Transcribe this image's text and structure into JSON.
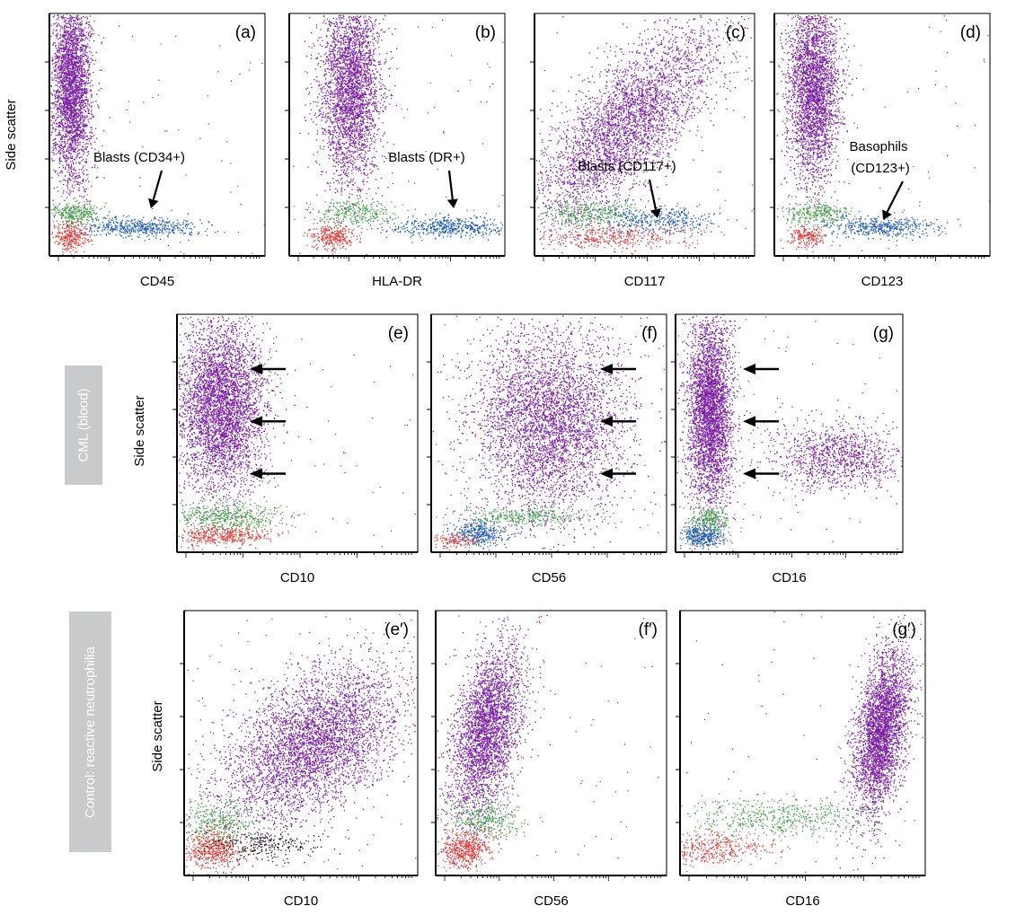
{
  "figure": {
    "ylabel": "Side scatter",
    "row_labels": [
      "CML (blood)",
      "Control: reactive neutrophilia"
    ]
  },
  "colors": {
    "granulocytes": "#7b1fa2",
    "lymphocytes": "#e53935",
    "monocytes": "#43a047",
    "blasts": "#1e5bb8",
    "other": "#111111",
    "arrow": "#000000"
  },
  "chart_data": [
    {
      "type": "scatter",
      "panel": "(a)",
      "xlabel": "CD45",
      "ylabel": "Side scatter",
      "x_scale": "log",
      "annotations": [
        {
          "text": "Blasts (CD34+)",
          "arrow": true
        }
      ],
      "populations": [
        {
          "name": "granulocytes",
          "color": "#7b1fa2",
          "x": 0.1,
          "y": 0.7,
          "count": 3200
        },
        {
          "name": "monocytes",
          "color": "#43a047",
          "x": 0.12,
          "y": 0.18,
          "count": 300
        },
        {
          "name": "lymphocytes",
          "color": "#e53935",
          "x": 0.1,
          "y": 0.08,
          "count": 300
        },
        {
          "name": "blasts",
          "color": "#1e5bb8",
          "x": 0.42,
          "y": 0.12,
          "count": 500
        }
      ]
    },
    {
      "type": "scatter",
      "panel": "(b)",
      "xlabel": "HLA-DR",
      "ylabel": "",
      "x_scale": "log",
      "annotations": [
        {
          "text": "Blasts (DR+)",
          "arrow": true
        }
      ],
      "populations": [
        {
          "name": "granulocytes",
          "color": "#7b1fa2",
          "x": 0.28,
          "y": 0.7,
          "count": 3200
        },
        {
          "name": "monocytes",
          "color": "#43a047",
          "x": 0.3,
          "y": 0.18,
          "count": 300
        },
        {
          "name": "lymphocytes",
          "color": "#e53935",
          "x": 0.2,
          "y": 0.08,
          "count": 300
        },
        {
          "name": "blasts",
          "color": "#1e5bb8",
          "x": 0.75,
          "y": 0.12,
          "count": 500
        }
      ]
    },
    {
      "type": "scatter",
      "panel": "(c)",
      "xlabel": "CD117",
      "ylabel": "",
      "x_scale": "log",
      "annotations": [
        {
          "text": "Blasts (CD117+)",
          "arrow": true
        }
      ],
      "populations": [
        {
          "name": "granulocytes",
          "color": "#7b1fa2",
          "x": 0.42,
          "y": 0.55,
          "count": 3600
        },
        {
          "name": "monocytes",
          "color": "#43a047",
          "x": 0.25,
          "y": 0.18,
          "count": 350
        },
        {
          "name": "lymphocytes",
          "color": "#e53935",
          "x": 0.35,
          "y": 0.08,
          "count": 400
        },
        {
          "name": "blasts",
          "color": "#1e5bb8",
          "x": 0.55,
          "y": 0.15,
          "count": 400
        }
      ]
    },
    {
      "type": "scatter",
      "panel": "(d)",
      "xlabel": "CD123",
      "ylabel": "",
      "x_scale": "log",
      "annotations": [
        {
          "text": "Basophils",
          "arrow": false
        },
        {
          "text": "(CD123+)",
          "arrow": true
        }
      ],
      "populations": [
        {
          "name": "granulocytes",
          "color": "#7b1fa2",
          "x": 0.18,
          "y": 0.7,
          "count": 3200
        },
        {
          "name": "monocytes",
          "color": "#43a047",
          "x": 0.2,
          "y": 0.18,
          "count": 300
        },
        {
          "name": "lymphocytes",
          "color": "#e53935",
          "x": 0.15,
          "y": 0.08,
          "count": 200
        },
        {
          "name": "blasts",
          "color": "#1e5bb8",
          "x": 0.5,
          "y": 0.12,
          "count": 450
        }
      ]
    },
    {
      "type": "scatter",
      "panel": "(e)",
      "xlabel": "CD10",
      "ylabel": "Side scatter",
      "x_scale": "log",
      "annotations": [
        {
          "text": "",
          "arrow": true
        },
        {
          "text": "",
          "arrow": true
        },
        {
          "text": "",
          "arrow": true
        }
      ],
      "populations": [
        {
          "name": "granulocytes",
          "color": "#7b1fa2",
          "x": 0.18,
          "y": 0.62,
          "count": 4200
        },
        {
          "name": "monocytes",
          "color": "#43a047",
          "x": 0.2,
          "y": 0.15,
          "count": 500
        },
        {
          "name": "lymphocytes",
          "color": "#e53935",
          "x": 0.18,
          "y": 0.07,
          "count": 400
        }
      ]
    },
    {
      "type": "scatter",
      "panel": "(f)",
      "xlabel": "CD56",
      "ylabel": "",
      "x_scale": "log",
      "annotations": [
        {
          "text": "",
          "arrow": true
        },
        {
          "text": "",
          "arrow": true
        },
        {
          "text": "",
          "arrow": true
        }
      ],
      "populations": [
        {
          "name": "granulocytes",
          "color": "#7b1fa2",
          "x": 0.5,
          "y": 0.55,
          "count": 4200
        },
        {
          "name": "monocytes",
          "color": "#43a047",
          "x": 0.4,
          "y": 0.15,
          "count": 350
        },
        {
          "name": "blasts",
          "color": "#1e5bb8",
          "x": 0.2,
          "y": 0.08,
          "count": 350
        },
        {
          "name": "lymphocytes",
          "color": "#e53935",
          "x": 0.1,
          "y": 0.05,
          "count": 120
        }
      ]
    },
    {
      "type": "scatter",
      "panel": "(g)",
      "xlabel": "CD16",
      "ylabel": "",
      "x_scale": "log",
      "annotations": [
        {
          "text": "",
          "arrow": true
        },
        {
          "text": "",
          "arrow": true
        },
        {
          "text": "",
          "arrow": true
        }
      ],
      "populations": [
        {
          "name": "granulocytes",
          "color": "#7b1fa2",
          "x": 0.15,
          "y": 0.6,
          "count": 3600
        },
        {
          "name": "granulocytes",
          "color": "#7b1fa2",
          "x": 0.72,
          "y": 0.4,
          "count": 1100
        },
        {
          "name": "monocytes",
          "color": "#43a047",
          "x": 0.15,
          "y": 0.14,
          "count": 250
        },
        {
          "name": "blasts",
          "color": "#1e5bb8",
          "x": 0.12,
          "y": 0.07,
          "count": 350
        }
      ]
    },
    {
      "type": "scatter",
      "panel": "(e′)",
      "xlabel": "CD10",
      "ylabel": "Side scatter",
      "x_scale": "log",
      "annotations": [],
      "populations": [
        {
          "name": "granulocytes",
          "color": "#7b1fa2",
          "x": 0.55,
          "y": 0.5,
          "count": 4200
        },
        {
          "name": "monocytes",
          "color": "#43a047",
          "x": 0.15,
          "y": 0.2,
          "count": 400
        },
        {
          "name": "lymphocytes",
          "color": "#e53935",
          "x": 0.12,
          "y": 0.1,
          "count": 500
        },
        {
          "name": "other",
          "color": "#111111",
          "x": 0.35,
          "y": 0.12,
          "count": 250
        }
      ]
    },
    {
      "type": "scatter",
      "panel": "(f′)",
      "xlabel": "CD56",
      "ylabel": "",
      "x_scale": "log",
      "annotations": [],
      "populations": [
        {
          "name": "granulocytes",
          "color": "#7b1fa2",
          "x": 0.22,
          "y": 0.55,
          "count": 3200
        },
        {
          "name": "monocytes",
          "color": "#43a047",
          "x": 0.22,
          "y": 0.22,
          "count": 350
        },
        {
          "name": "lymphocytes",
          "color": "#e53935",
          "x": 0.12,
          "y": 0.1,
          "count": 500
        }
      ]
    },
    {
      "type": "scatter",
      "panel": "(g′)",
      "xlabel": "CD16",
      "ylabel": "",
      "x_scale": "log",
      "annotations": [],
      "populations": [
        {
          "name": "granulocytes",
          "color": "#7b1fa2",
          "x": 0.82,
          "y": 0.55,
          "count": 3400
        },
        {
          "name": "monocytes",
          "color": "#43a047",
          "x": 0.4,
          "y": 0.22,
          "count": 550
        },
        {
          "name": "lymphocytes",
          "color": "#e53935",
          "x": 0.12,
          "y": 0.1,
          "count": 400
        }
      ]
    }
  ]
}
